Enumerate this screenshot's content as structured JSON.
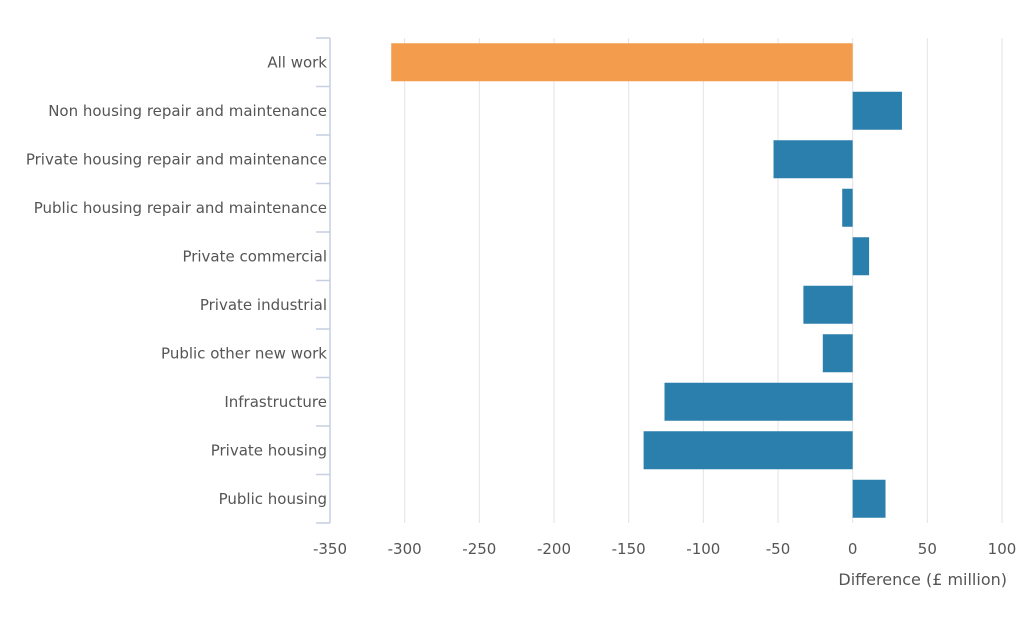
{
  "chart_data": {
    "type": "bar",
    "orientation": "horizontal",
    "categories": [
      "All work",
      "Non housing repair and maintenance",
      "Private housing repair and maintenance",
      "Public housing repair and maintenance",
      "Private commercial",
      "Private industrial",
      "Public other new work",
      "Infrastructure",
      "Private housing",
      "Public housing"
    ],
    "values": [
      -309,
      33,
      -53,
      -7,
      11,
      -33,
      -20,
      -126,
      -140,
      22
    ],
    "highlight_category": "All work",
    "xlabel": "Difference (£ million)",
    "xlim": [
      -350,
      100
    ],
    "xticks": [
      -350,
      -300,
      -250,
      -200,
      -150,
      -100,
      -50,
      0,
      50,
      100
    ],
    "grid": "vertical",
    "colors": {
      "highlight": "#f39c4d",
      "default": "#2a7fac",
      "grid": "#e3e3e3",
      "axis": "#c6cfe0",
      "text": "#555555"
    }
  }
}
